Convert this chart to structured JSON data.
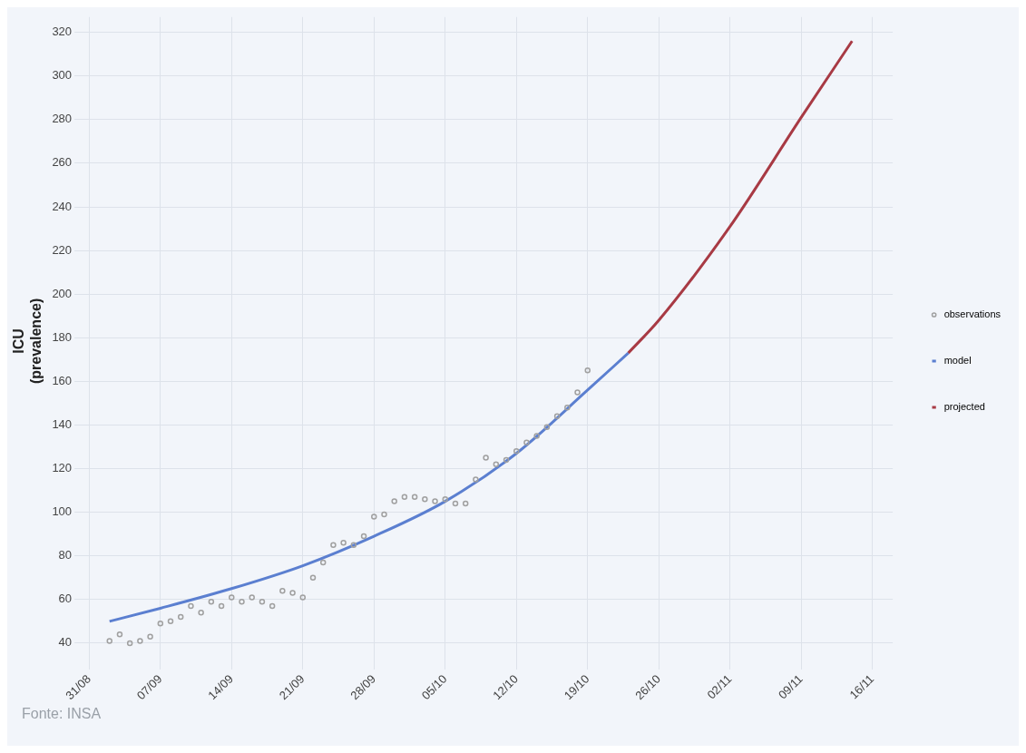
{
  "chart_data": {
    "type": "line",
    "ylabel": "ICU\n(prevalence)",
    "annotations": [
      "Fonte: INSA"
    ],
    "xlim": [
      "--08-30",
      "--11-18"
    ],
    "xticks": [
      {
        "value": "--08-31",
        "label": "31/08"
      },
      {
        "value": "--09-07",
        "label": "07/09"
      },
      {
        "value": "--09-14",
        "label": "14/09"
      },
      {
        "value": "--09-21",
        "label": "21/09"
      },
      {
        "value": "--09-28",
        "label": "28/09"
      },
      {
        "value": "--10-05",
        "label": "05/10"
      },
      {
        "value": "--10-12",
        "label": "12/10"
      },
      {
        "value": "--10-19",
        "label": "19/10"
      },
      {
        "value": "--10-26",
        "label": "26/10"
      },
      {
        "value": "--11-02",
        "label": "02/11"
      },
      {
        "value": "--11-09",
        "label": "09/11"
      },
      {
        "value": "--11-16",
        "label": "16/11"
      }
    ],
    "ylim": [
      30,
      327
    ],
    "yticks": [
      40,
      60,
      80,
      100,
      120,
      140,
      160,
      180,
      200,
      220,
      240,
      260,
      280,
      300,
      320
    ],
    "grid": true,
    "legend": "right",
    "series": [
      {
        "name": "observations",
        "type": "scatter",
        "color": "#a0a0a0",
        "marker": "circle",
        "x": [
          "--09-02",
          "--09-03",
          "--09-04",
          "--09-05",
          "--09-06",
          "--09-07",
          "--09-08",
          "--09-09",
          "--09-10",
          "--09-11",
          "--09-12",
          "--09-13",
          "--09-14",
          "--09-15",
          "--09-16",
          "--09-17",
          "--09-18",
          "--09-19",
          "--09-20",
          "--09-21",
          "--09-22",
          "--09-23",
          "--09-24",
          "--09-25",
          "--09-26",
          "--09-27",
          "--09-28",
          "--09-29",
          "--09-30",
          "--10-01",
          "--10-02",
          "--10-03",
          "--10-04",
          "--10-05",
          "--10-06",
          "--10-07",
          "--10-08",
          "--10-09",
          "--10-10",
          "--10-11",
          "--10-12",
          "--10-13",
          "--10-14",
          "--10-15",
          "--10-16",
          "--10-17",
          "--10-18",
          "--10-19"
        ],
        "values": [
          41,
          44,
          40,
          41,
          43,
          49,
          50,
          52,
          57,
          54,
          59,
          57,
          61,
          59,
          61,
          59,
          57,
          64,
          63,
          61,
          70,
          77,
          85,
          86,
          85,
          89,
          98,
          99,
          105,
          107,
          107,
          106,
          105,
          106,
          104,
          104,
          115,
          125,
          122,
          124,
          128,
          132,
          135,
          139,
          144,
          148,
          155,
          165
        ]
      },
      {
        "name": "model",
        "color": "#5b7fd0",
        "marker": "none",
        "x": [
          "--09-02",
          "--09-07",
          "--09-14",
          "--09-21",
          "--09-28",
          "--10-05",
          "--10-12",
          "--10-19",
          "--10-23"
        ],
        "values": [
          50,
          56,
          65,
          75.5,
          89,
          105,
          127,
          156,
          173
        ]
      },
      {
        "name": "projected",
        "color": "#a83a44",
        "marker": "none",
        "x": [
          "--10-23",
          "--10-26",
          "--11-02",
          "--11-09",
          "--11-14"
        ],
        "values": [
          173,
          188,
          231,
          281,
          316
        ]
      }
    ]
  }
}
